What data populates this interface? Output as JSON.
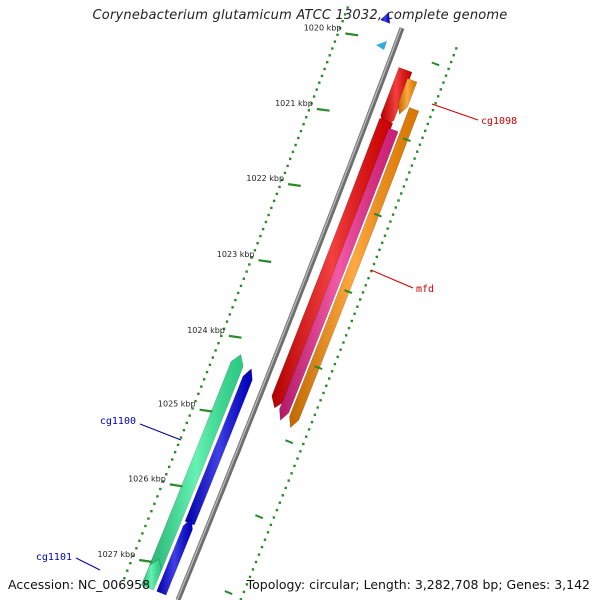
{
  "title": "Corynebacterium glutamicum ATCC 13032, complete genome",
  "footer": {
    "accession": "Accession: NC_006958",
    "summary": "Topology: circular; Length: 3,282,708 bp; Genes: 3,142"
  },
  "colors": {
    "backbone": "#8a8a8a",
    "tick": "#2a8a2a",
    "forward_label": "#cc0000",
    "reverse_label": "#0000aa"
  },
  "ticks": [
    {
      "label": "1020 kbp"
    },
    {
      "label": "1021 kbp"
    },
    {
      "label": "1022 kbp"
    },
    {
      "label": "1023 kbp"
    },
    {
      "label": "1024 kbp"
    },
    {
      "label": "1025 kbp"
    },
    {
      "label": "1026 kbp"
    },
    {
      "label": "1027 kbp"
    }
  ],
  "genes": [
    {
      "id": "gene-cg1098-red",
      "color": "#ee0000",
      "strand": "forward",
      "track": "outer-1"
    },
    {
      "id": "gene-cg1098-orange",
      "color": "#ff8c00",
      "strand": "forward",
      "track": "outer-2"
    },
    {
      "id": "gene-mfd-red",
      "color": "#ee0000",
      "strand": "forward",
      "track": "outer-1"
    },
    {
      "id": "gene-mfd-magenta",
      "color": "#ee2288",
      "strand": "forward",
      "track": "outer-2"
    },
    {
      "id": "gene-mfd-orange",
      "color": "#ff8c00",
      "strand": "forward",
      "track": "outer-3"
    },
    {
      "id": "gene-cg1100-green",
      "color": "#33ee99",
      "strand": "reverse",
      "track": "inner-2"
    },
    {
      "id": "gene-cg1100-blue",
      "color": "#0000dd",
      "strand": "reverse",
      "track": "inner-1"
    },
    {
      "id": "gene-cg1101-green",
      "color": "#33ee99",
      "strand": "reverse",
      "track": "inner-2"
    },
    {
      "id": "gene-cg1101-blue",
      "color": "#0000dd",
      "strand": "reverse",
      "track": "inner-1"
    },
    {
      "id": "gene-top-blue",
      "color": "#0000dd",
      "strand": "reverse",
      "track": "inner-1"
    }
  ],
  "gene_labels": [
    {
      "text": "cg1098",
      "strand": "forward"
    },
    {
      "text": "mfd",
      "strand": "forward"
    },
    {
      "text": "cg1100",
      "strand": "reverse"
    },
    {
      "text": "cg1101",
      "strand": "reverse"
    }
  ]
}
